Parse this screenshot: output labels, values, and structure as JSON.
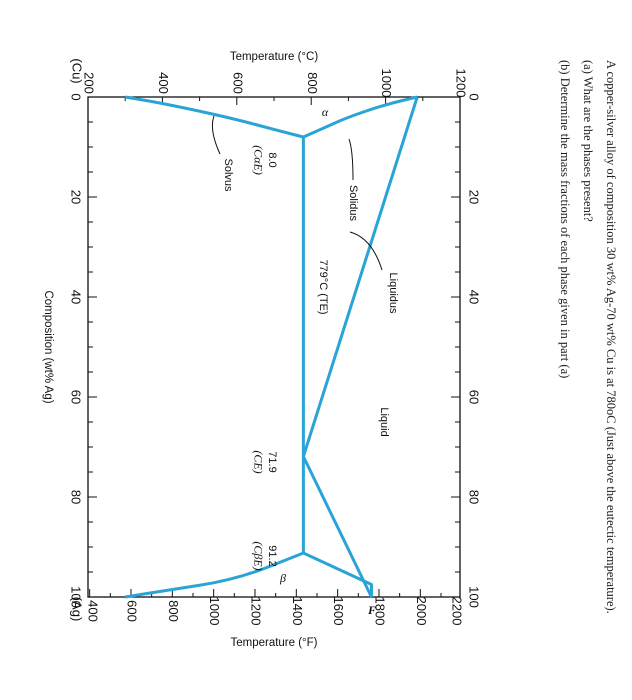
{
  "question": {
    "stem": "A copper-silver alloy of composition 30 wt% Ag-70 wt% Cu is at 780oC (Just above the eutectic temperature).",
    "part_a": "(a) What are the phases present?",
    "part_b": "(b) Determine the mass fractions of each phase given in part (a)"
  },
  "chart_data": {
    "type": "line",
    "title": "",
    "xlabel": "Composition (wt% Ag)",
    "ylabel_left": "Temperature (°C)",
    "ylabel_right": "Temperature (°F)",
    "xlim": [
      0,
      100
    ],
    "ylim_c": [
      200,
      1200
    ],
    "ylim_f": [
      400,
      2200
    ],
    "x_ticks_outer": [
      "0",
      "20",
      "40",
      "60",
      "80",
      "100"
    ],
    "x_ticks_inner": [
      "0",
      "20",
      "40",
      "60",
      "80",
      "100"
    ],
    "y_ticks_c": [
      "200",
      "400",
      "600",
      "800",
      "1000",
      "1200"
    ],
    "y_ticks_f": [
      "400",
      "600",
      "800",
      "1000",
      "1200",
      "1400",
      "1600",
      "1800",
      "2000",
      "2200"
    ],
    "x_end_labels": {
      "left": "(Cu)",
      "right": "(Ag)"
    },
    "series": [
      {
        "name": "Liquidus",
        "x": [
          0,
          71.9,
          100
        ],
        "y": [
          1085,
          779,
          962
        ]
      },
      {
        "name": "Solidus",
        "x": [
          0,
          1.5,
          4,
          6,
          8.0
        ],
        "y": [
          1085,
          1000,
          900,
          840,
          779
        ]
      },
      {
        "x": [
          8.0,
          91.2
        ],
        "y": [
          779,
          779
        ]
      },
      {
        "name": "Solvus",
        "x": [
          8.0,
          6.5,
          4.5,
          2.5,
          1.0,
          0
        ],
        "y": [
          779,
          700,
          600,
          480,
          380,
          300
        ]
      },
      {
        "x": [
          91.2,
          97.5,
          100
        ],
        "y": [
          779,
          962,
          962
        ]
      },
      {
        "x": [
          91.2,
          96.5,
          98.8,
          100
        ],
        "y": [
          779,
          600,
          400,
          300
        ]
      }
    ],
    "annotations": {
      "alpha": "α",
      "beta": "β",
      "liquid": "Liquid",
      "liquidus": "Liquidus",
      "solidus": "Solidus",
      "solvus": "Solvus",
      "eutectic_temp": "779°C (TE)",
      "c_alpha_e_value": "8.0",
      "c_alpha_e_label": "(CαE)",
      "c_e_value": "71.9",
      "c_e_label": "(CE)",
      "c_beta_e_value": "91.2",
      "c_beta_e_label": "(CβE)",
      "f_marker": "F"
    },
    "colors": {
      "line": "#2aa3d6"
    }
  }
}
